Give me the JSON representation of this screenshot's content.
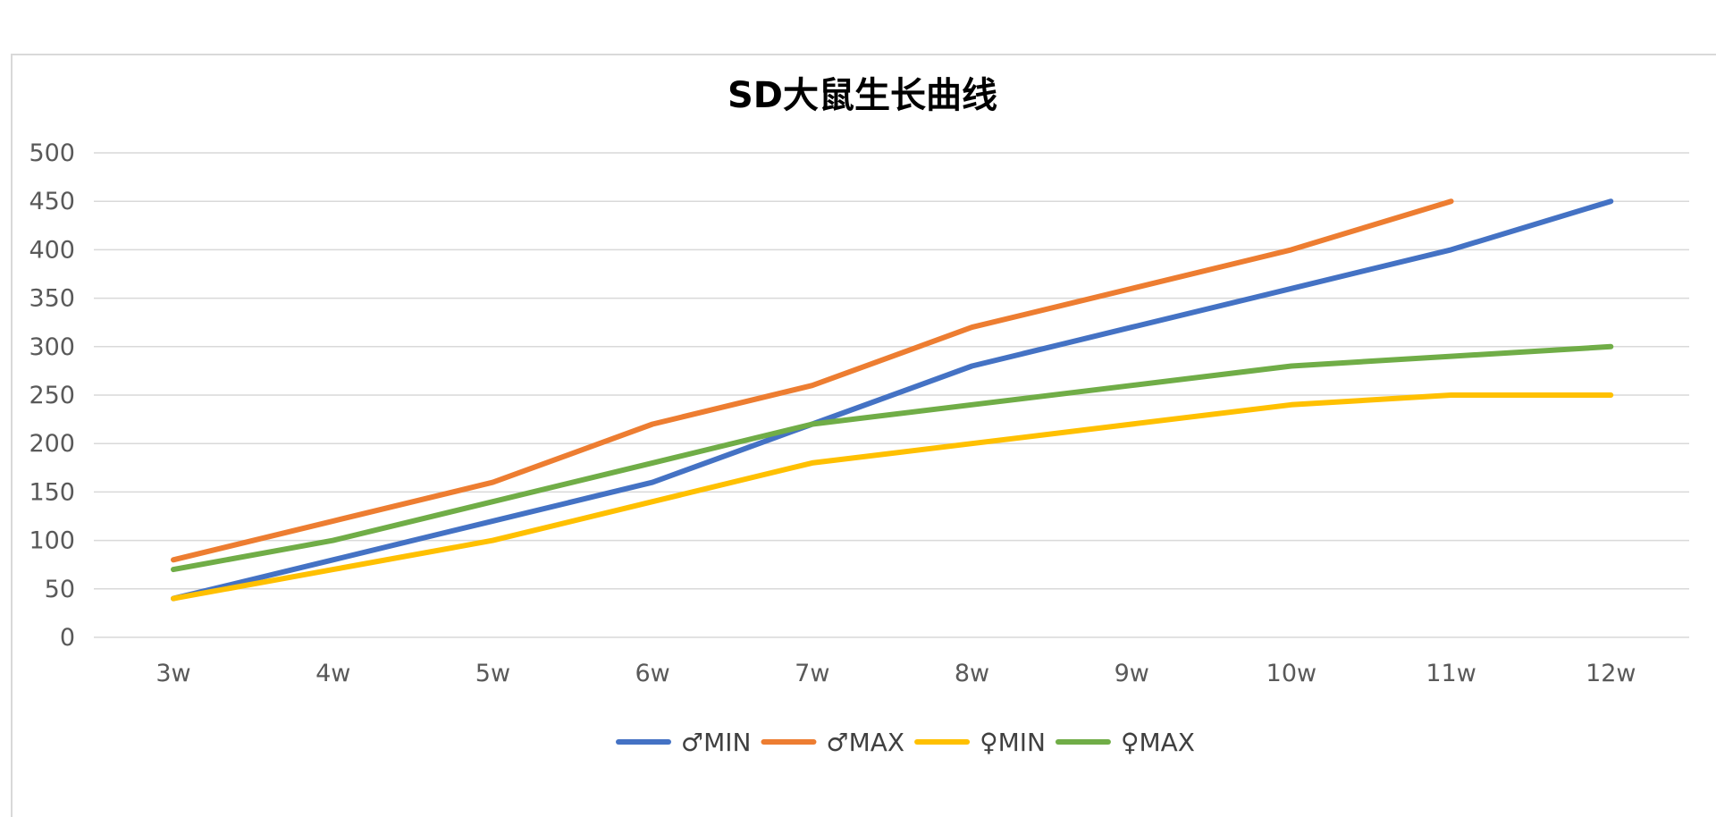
{
  "chart_data": {
    "type": "line",
    "title": "SD大鼠生长曲线",
    "categories": [
      "3w",
      "4w",
      "5w",
      "6w",
      "7w",
      "8w",
      "9w",
      "10w",
      "11w",
      "12w"
    ],
    "ylim": [
      0,
      500
    ],
    "yticks": [
      0,
      50,
      100,
      150,
      200,
      250,
      300,
      350,
      400,
      450,
      500
    ],
    "grid": true,
    "legend_position": "bottom",
    "series": [
      {
        "name": "♂MIN",
        "color": "#4472c4",
        "values": [
          40,
          80,
          120,
          160,
          220,
          280,
          320,
          360,
          400,
          450
        ]
      },
      {
        "name": "♂MAX",
        "color": "#ed7d31",
        "values": [
          80,
          120,
          160,
          220,
          260,
          320,
          360,
          400,
          450,
          null
        ]
      },
      {
        "name": "♀MIN",
        "color": "#ffc000",
        "values": [
          40,
          70,
          100,
          140,
          180,
          200,
          220,
          240,
          250,
          250
        ]
      },
      {
        "name": "♀MAX",
        "color": "#70ad47",
        "values": [
          70,
          100,
          140,
          180,
          220,
          240,
          260,
          280,
          290,
          300
        ]
      }
    ]
  }
}
